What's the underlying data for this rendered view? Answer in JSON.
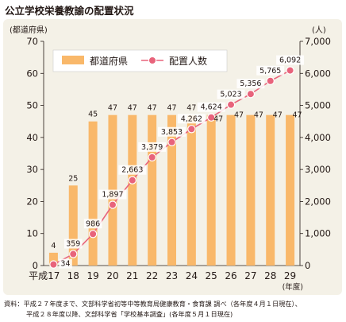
{
  "title": "公立学校栄養教諭の配置状況",
  "source": {
    "line1": "資料：平成２７年度まで、文部科学省初等中等教育局健康教育・食育課 調べ（各年度４月１日現在）、",
    "line2": "平成２８年度以降、文部科学省「学校基本調査」(各年度５月１日現在)"
  },
  "colors": {
    "bar": "#f9b86a",
    "line": "#e8637b",
    "marker_fill": "#e8637b",
    "panel": "#f4f1e7"
  },
  "chart_data": {
    "type": "bar",
    "categories": [
      "平成17",
      "18",
      "19",
      "20",
      "21",
      "22",
      "23",
      "24",
      "25",
      "26",
      "27",
      "28",
      "29"
    ],
    "x_suffix": "(年度)",
    "y_left": {
      "label": "(都道府県)",
      "ylim": [
        0,
        70
      ],
      "ticks": [
        "0",
        "10",
        "20",
        "30",
        "40",
        "50",
        "60",
        "70"
      ]
    },
    "y_right": {
      "label": "(人)",
      "ylim": [
        0,
        7000
      ],
      "ticks": [
        "0",
        "1,000",
        "2,000",
        "3,000",
        "4,000",
        "5,000",
        "6,000",
        "7,000"
      ]
    },
    "legend": {
      "placement": "top-left"
    },
    "series": [
      {
        "name": "都道府県",
        "type": "bar",
        "axis": "left",
        "values": [
          4,
          25,
          45,
          47,
          47,
          47,
          47,
          47,
          47,
          47,
          47,
          47,
          47
        ],
        "labels": [
          "4",
          "25",
          "45",
          "47",
          "47",
          "47",
          "47",
          "47",
          "47",
          "47",
          "47",
          "47",
          "47"
        ]
      },
      {
        "name": "配置人数",
        "type": "line",
        "axis": "right",
        "values": [
          34,
          359,
          986,
          1897,
          2663,
          3379,
          3853,
          4262,
          4624,
          5023,
          5356,
          5765,
          6092
        ],
        "labels": [
          "34",
          "359",
          "986",
          "1,897",
          "2,663",
          "3,379",
          "3,853",
          "4,262",
          "4,624",
          "5,023",
          "5,356",
          "5,765",
          "6,092"
        ]
      }
    ]
  }
}
